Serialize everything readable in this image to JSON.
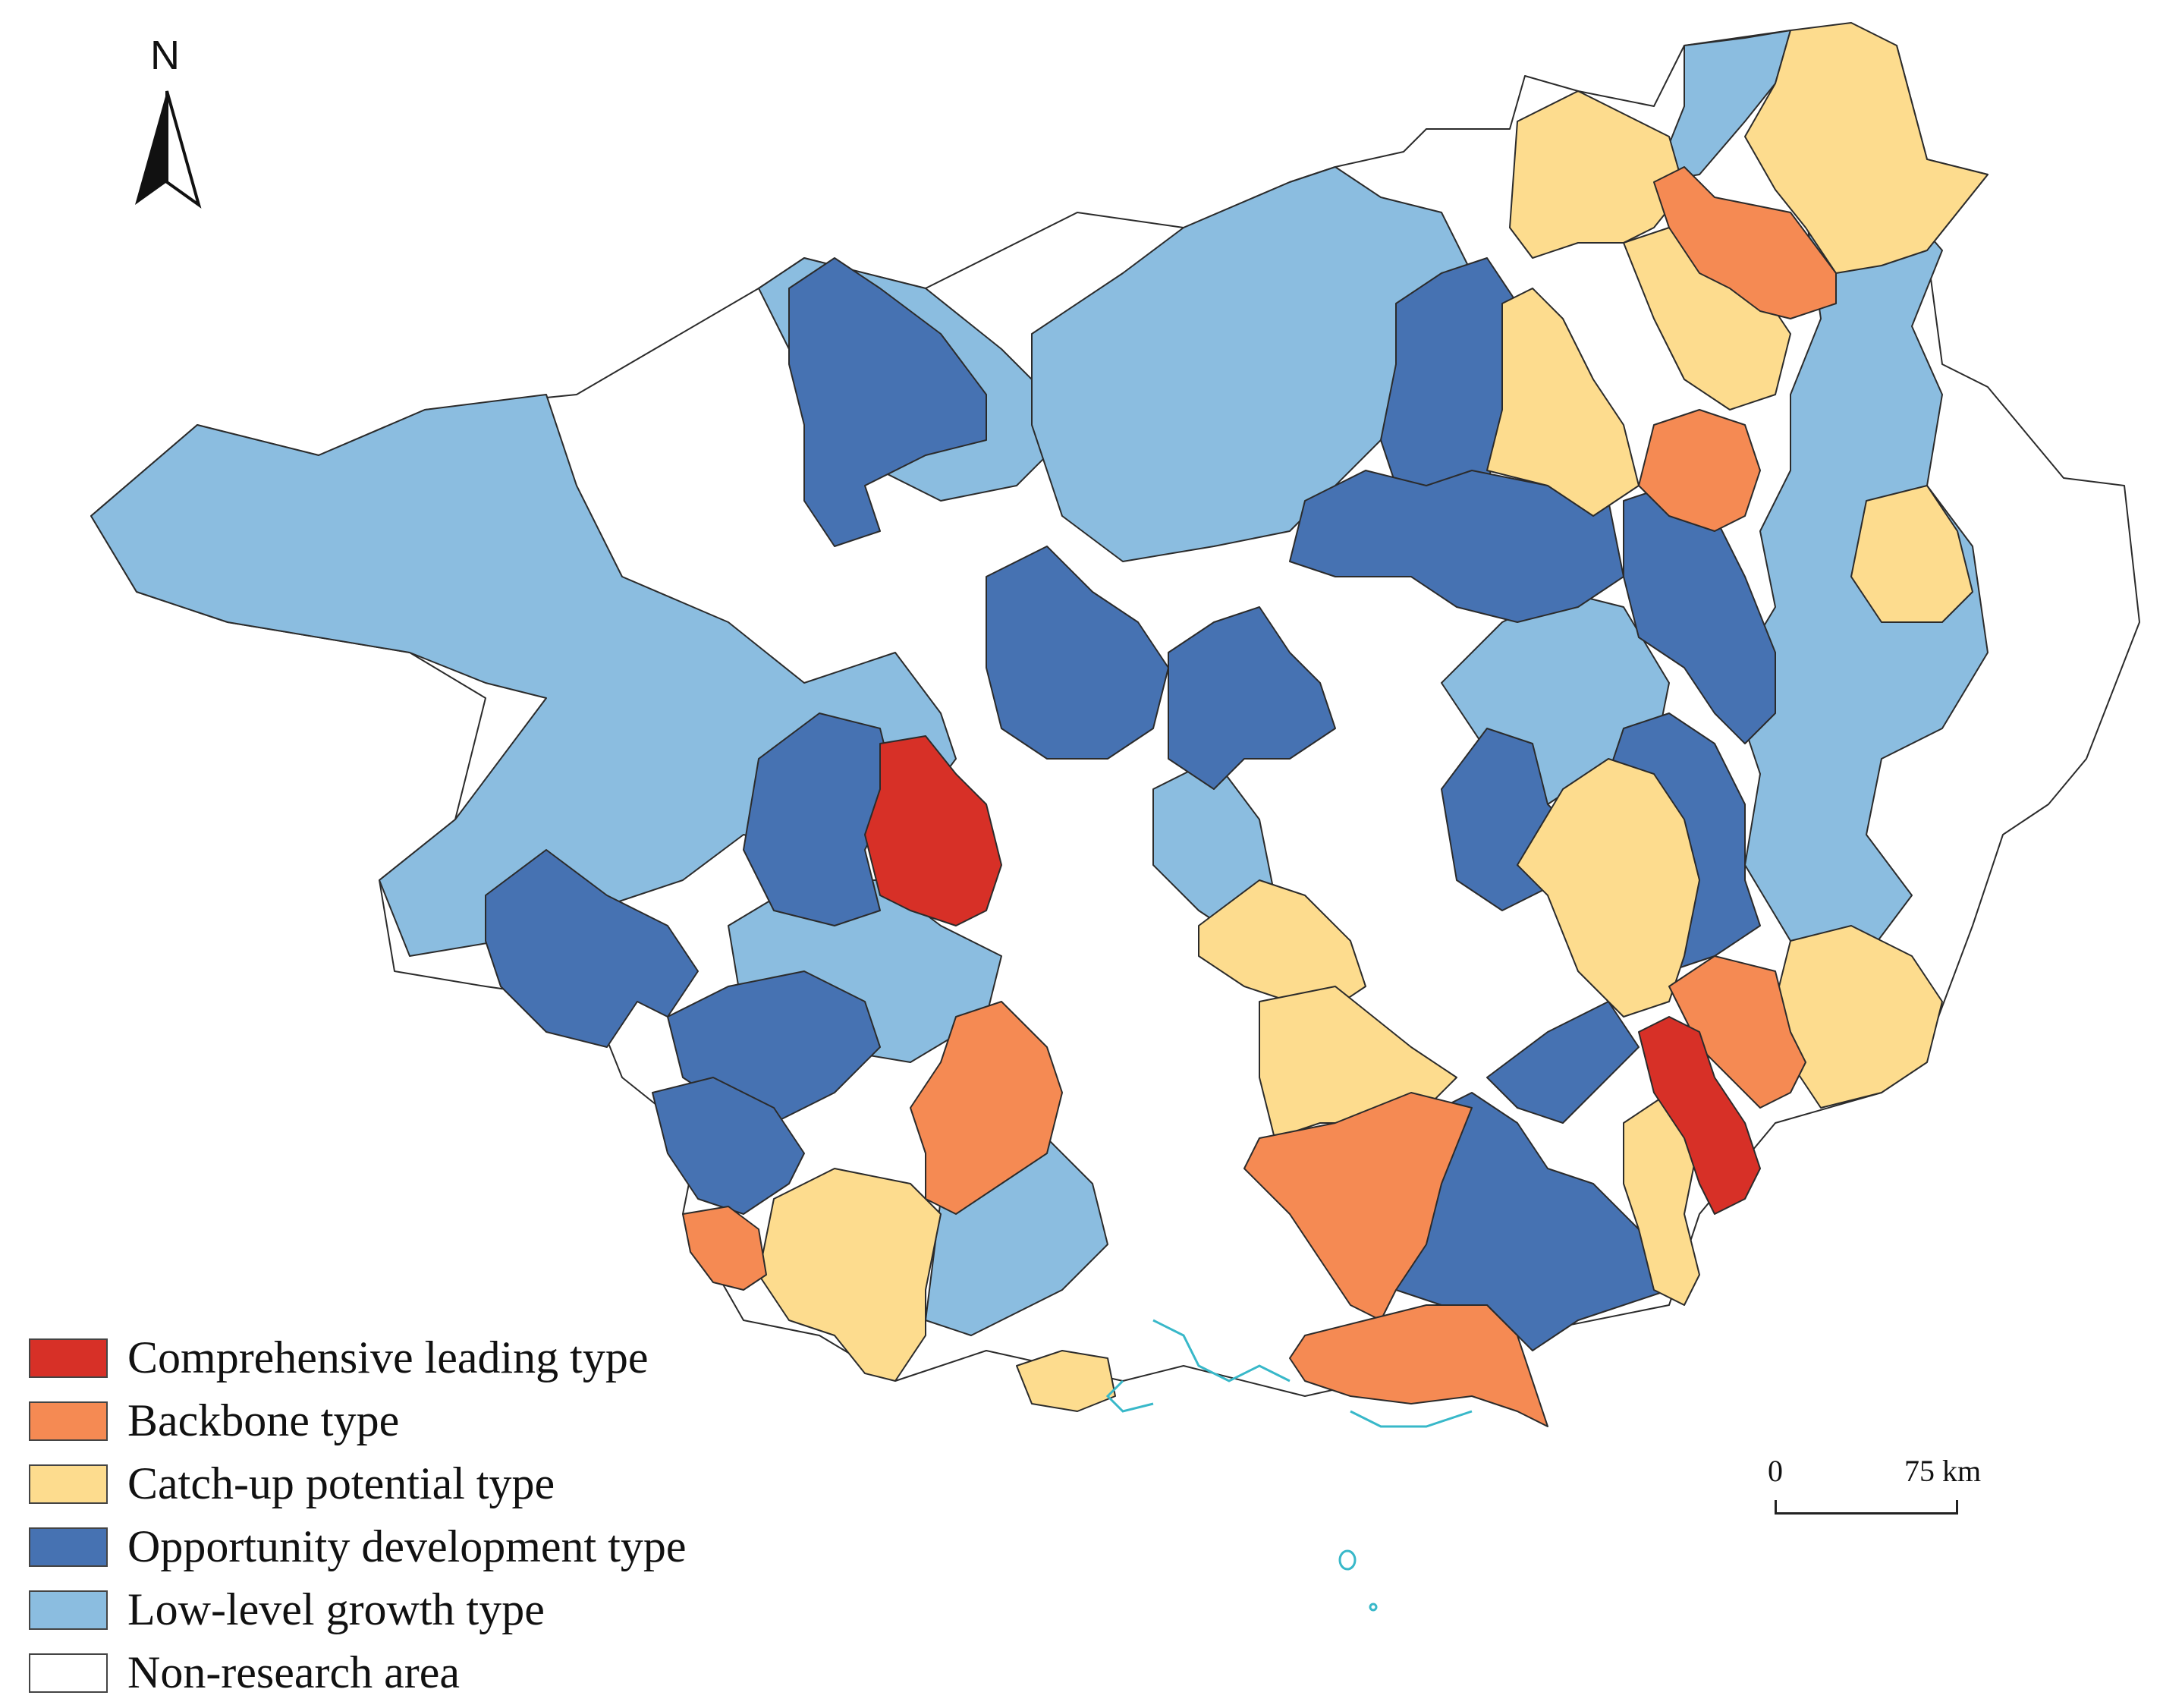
{
  "map": {
    "north_label": "N",
    "colors": {
      "comprehensive": "#d73027",
      "backbone": "#f58a53",
      "catchup": "#fddc8e",
      "opportunity": "#4672b2",
      "lowlevel": "#8bbde0",
      "nonresearch": "#ffffff",
      "coast": "#38b8c9"
    }
  },
  "legend": {
    "items": [
      {
        "label": "Comprehensive leading type",
        "color": "#d73027"
      },
      {
        "label": "Backbone type",
        "color": "#f58a53"
      },
      {
        "label": "Catch-up potential type",
        "color": "#fddc8e"
      },
      {
        "label": "Opportunity development type",
        "color": "#4672b2"
      },
      {
        "label": "Low-level growth type",
        "color": "#8bbde0"
      },
      {
        "label": "Non-research area",
        "color": "#ffffff"
      }
    ]
  },
  "scale": {
    "start": "0",
    "end": "75 km"
  }
}
